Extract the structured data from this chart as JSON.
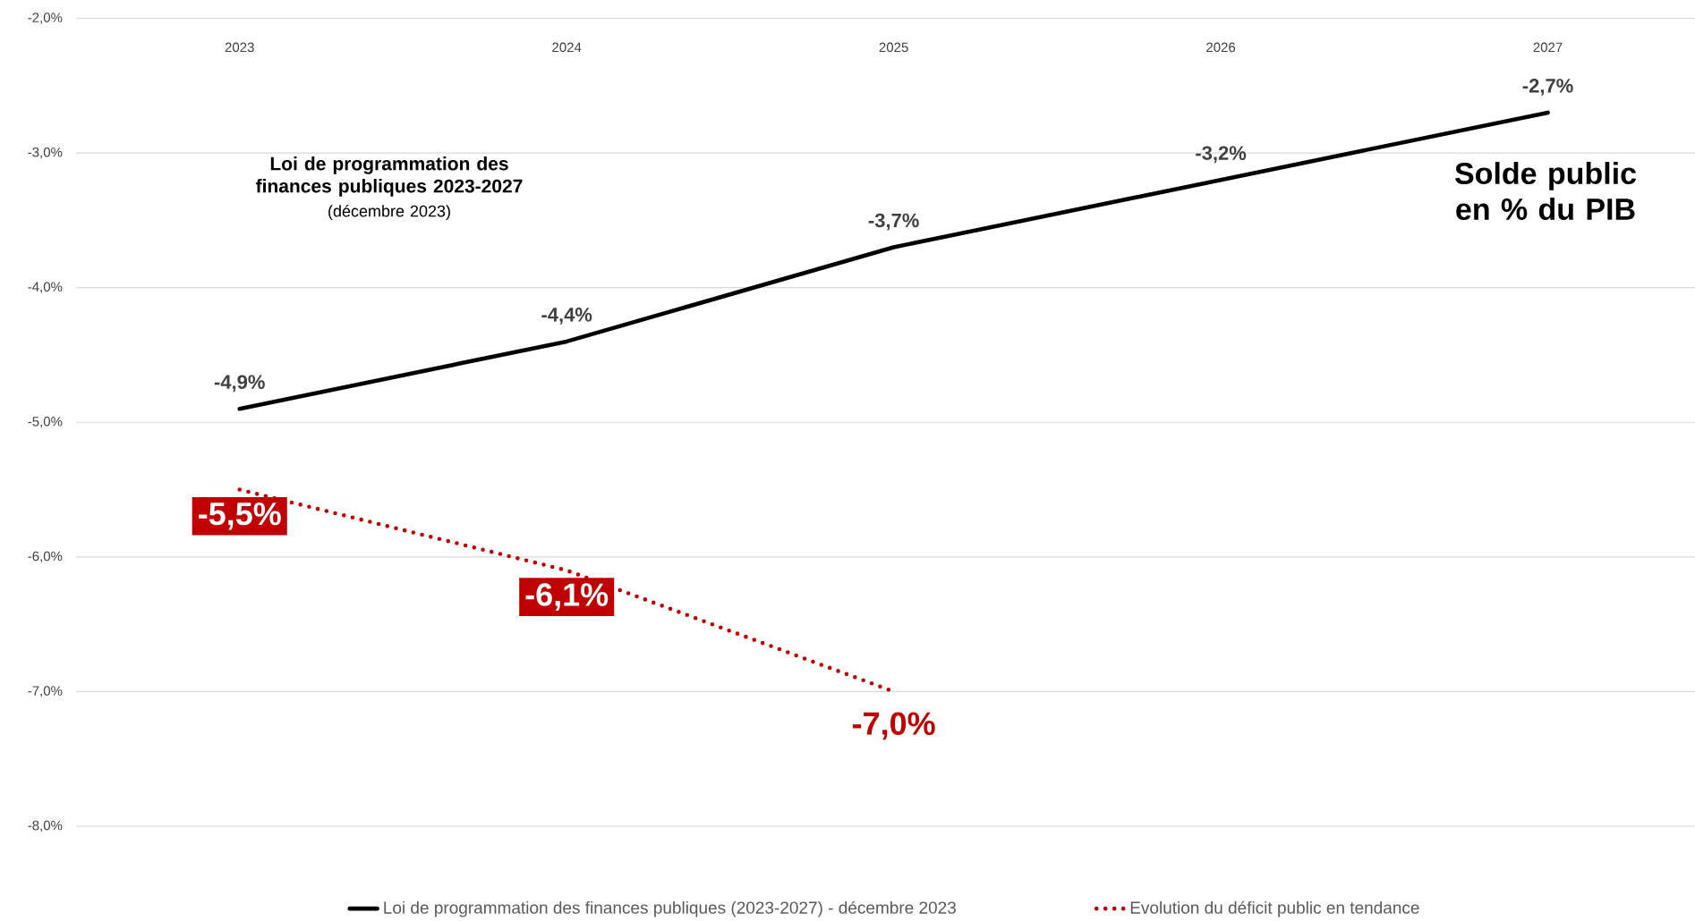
{
  "chart_data": {
    "type": "line",
    "title": "Solde public en % du PIB",
    "annotations": [
      "**Loi de programmation des finances publiques 2023-2027**",
      "(décembre 2023)"
    ],
    "categories": [
      "2023",
      "2024",
      "2025",
      "2026",
      "2027"
    ],
    "series": [
      {
        "name": "Loi de programmation des finances publiques (2023-2027) - décembre 2023",
        "color": "#000000",
        "line_style": "solid",
        "values": [
          -4.9,
          -4.4,
          -3.7,
          -3.2,
          -2.7
        ],
        "value_labels": [
          "-4,9%",
          "-4,4%",
          "-3,7%",
          "-3,2%",
          "-2,7%"
        ]
      },
      {
        "name": "Evolution du déficit public en tendance",
        "color": "#c00000",
        "line_style": "dotted",
        "values": [
          -5.5,
          -6.1,
          -7.0,
          null,
          null
        ],
        "value_labels": [
          "-5,5%",
          "-6,1%",
          "-7,0%",
          null,
          null
        ]
      }
    ],
    "ylim": [
      -8,
      -2
    ],
    "yticks": [
      {
        "value": -8,
        "label": "-8,0%"
      },
      {
        "value": -7,
        "label": "-7,0%"
      },
      {
        "value": -6,
        "label": "-6,0%"
      },
      {
        "value": -5,
        "label": "-5,0%"
      },
      {
        "value": -4,
        "label": "-4,0%"
      },
      {
        "value": -3,
        "label": "-3,0%"
      },
      {
        "value": -2,
        "label": "-2,0%"
      }
    ],
    "grid": "y",
    "legend": "bottom",
    "marker": "none"
  }
}
